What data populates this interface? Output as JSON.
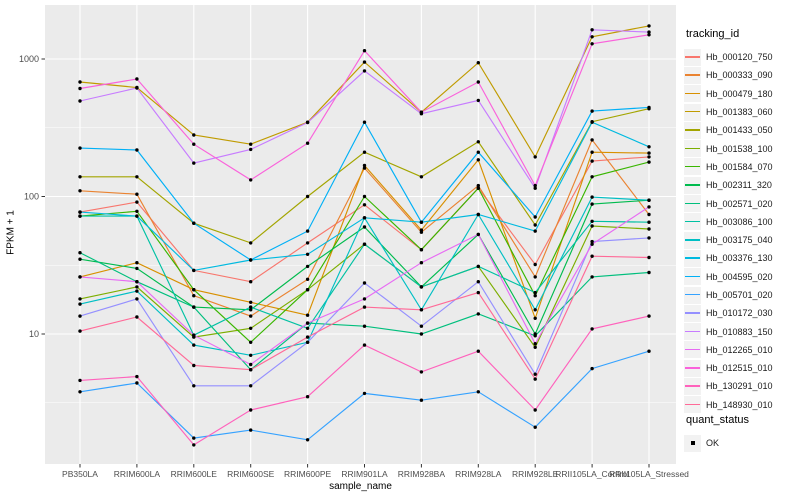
{
  "chart_data": {
    "type": "line",
    "title": "",
    "xlabel": "sample_name",
    "ylabel": "FPKM + 1",
    "yscale": "log10",
    "yticks": [
      10,
      100,
      1000
    ],
    "ytick_labels": [
      "10",
      "100",
      "1000"
    ],
    "ylim": [
      1.1,
      2400
    ],
    "grid": "white major and minor gridlines on gray panel",
    "legend_position": "right",
    "panel_bg": "#EBEBEB",
    "grid_color": "#FFFFFF",
    "tick_label_color": "#4D4D4D",
    "point_marker": {
      "shape": "circle",
      "color": "#000000",
      "radius": 1.7
    },
    "categories": [
      "PB350LA",
      "RRIM600LA",
      "RRIM600LE",
      "RRIM600SE",
      "RRIM600PE",
      "RRIM901LA",
      "RRIM928BA",
      "RRIM928LA",
      "RRIM928LE",
      "RRII105LA_Control",
      "RRII105LA_Stressed"
    ],
    "color_legend_title": "tracking_id",
    "shape_legend_title": "quant_status",
    "shape_legend_items": [
      {
        "label": "OK",
        "marker": "black-square-point"
      }
    ],
    "series": [
      {
        "name": "Hb_000120_750",
        "color": "#F8766D",
        "values": [
          77,
          91,
          29,
          24,
          46,
          87,
          41,
          115,
          32,
          181,
          194
        ]
      },
      {
        "name": "Hb_000333_090",
        "color": "#EA8331",
        "values": [
          110,
          104,
          19,
          13.5,
          25,
          161,
          55,
          120,
          26,
          258,
          74
        ]
      },
      {
        "name": "Hb_000479_180",
        "color": "#D89000",
        "values": [
          26,
          33,
          21,
          17,
          13.7,
          168,
          57,
          185,
          13,
          210,
          207
        ]
      },
      {
        "name": "Hb_001383_060",
        "color": "#C09B00",
        "values": [
          680,
          620,
          280,
          240,
          347,
          950,
          410,
          940,
          194,
          1450,
          1740
        ]
      },
      {
        "name": "Hb_001433_050",
        "color": "#A3A500",
        "values": [
          139,
          139,
          64,
          46,
          100,
          210,
          139,
          250,
          62,
          350,
          435
        ]
      },
      {
        "name": "Hb_001538_100",
        "color": "#7CAE00",
        "values": [
          18,
          22,
          9.5,
          11,
          21,
          45,
          22,
          31,
          8,
          61,
          58
        ]
      },
      {
        "name": "Hb_001584_070",
        "color": "#39B600",
        "values": [
          72,
          78,
          21,
          8.7,
          21,
          100,
          41,
          115,
          19,
          139,
          178
        ]
      },
      {
        "name": "Hb_002311_320",
        "color": "#00BB4E",
        "values": [
          35,
          30,
          15.7,
          15,
          31,
          60,
          22,
          53,
          10,
          88,
          94
        ]
      },
      {
        "name": "Hb_002571_020",
        "color": "#00BF7D",
        "values": [
          39,
          24,
          15.7,
          5.5,
          12,
          11.4,
          10,
          14,
          9.7,
          26,
          28
        ]
      },
      {
        "name": "Hb_003086_100",
        "color": "#00C1A3",
        "values": [
          72,
          72,
          9.8,
          15.7,
          11,
          45,
          22,
          31,
          20,
          66,
          65
        ]
      },
      {
        "name": "Hb_003175_040",
        "color": "#00BFC4",
        "values": [
          16.5,
          20.5,
          8.3,
          7,
          8.7,
          70,
          15,
          74,
          15,
          99,
          94
        ]
      },
      {
        "name": "Hb_003376_130",
        "color": "#00BAE0",
        "values": [
          77,
          72,
          29,
          34.5,
          38,
          70,
          65,
          74,
          56,
          347,
          230
        ]
      },
      {
        "name": "Hb_004595_020",
        "color": "#00B0F6",
        "values": [
          225,
          218,
          64,
          34.5,
          56,
          347,
          65,
          210,
          71,
          418,
          445
        ]
      },
      {
        "name": "Hb_005701_020",
        "color": "#35A2FF",
        "values": [
          3.8,
          4.4,
          1.75,
          2.0,
          1.7,
          3.7,
          3.3,
          3.8,
          2.1,
          5.6,
          7.5
        ]
      },
      {
        "name": "Hb_010172_030",
        "color": "#9590FF",
        "values": [
          13.5,
          18,
          4.2,
          4.2,
          8.7,
          23.5,
          11.4,
          24,
          5.1,
          47,
          50
        ]
      },
      {
        "name": "Hb_010883_150",
        "color": "#C77CFF",
        "values": [
          495,
          615,
          175,
          220,
          345,
          820,
          400,
          500,
          115,
          1630,
          1570
        ]
      },
      {
        "name": "Hb_012265_010",
        "color": "#E76BF3",
        "values": [
          26,
          24,
          9.8,
          6,
          12,
          18,
          33,
          53,
          8.5,
          45,
          84
        ]
      },
      {
        "name": "Hb_012515_010",
        "color": "#FA62DB",
        "values": [
          610,
          715,
          240,
          132,
          244,
          1150,
          410,
          680,
          120,
          1290,
          1500
        ]
      },
      {
        "name": "Hb_130291_010",
        "color": "#FF62BC",
        "values": [
          4.6,
          4.9,
          1.56,
          2.8,
          3.5,
          8.3,
          5.3,
          7.5,
          2.8,
          10.9,
          13.5
        ]
      },
      {
        "name": "Hb_148930_010",
        "color": "#FF6A98",
        "values": [
          10.5,
          13.3,
          5.9,
          5.5,
          9.5,
          15.7,
          15,
          20,
          4.7,
          36.8,
          36
        ]
      }
    ]
  }
}
